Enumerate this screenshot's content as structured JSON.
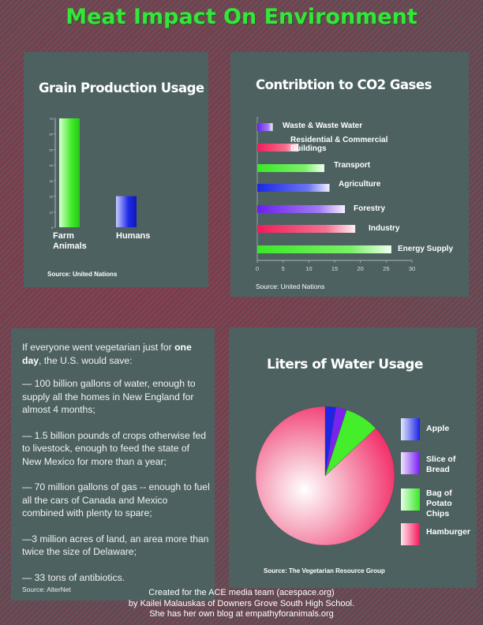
{
  "title": "Meat Impact On Environment",
  "grain": {
    "title": "Grain Production Usage",
    "source": "Source: United Nations",
    "labels": [
      [
        "Farm",
        "Animals"
      ],
      [
        "Humans"
      ]
    ]
  },
  "co2": {
    "title": "Contribtion to CO2 Gases",
    "source": "Source: United Nations",
    "labels": [
      [
        "Waste & Waste Water"
      ],
      [
        "Residential & Commercial",
        "Buildings"
      ],
      [
        "Transport"
      ],
      [
        "Agriculture"
      ],
      [
        "Forestry"
      ],
      [
        "Industry"
      ],
      [
        "Energy Supply"
      ]
    ]
  },
  "water": {
    "title": "Liters of Water Usage",
    "source": "Source: The Vegetarian Resource Group",
    "legend": [
      {
        "lines": [
          "Apple"
        ],
        "color": "#2020e8"
      },
      {
        "lines": [
          "Slice of",
          "Bread"
        ],
        "color": "#7a22f0"
      },
      {
        "lines": [
          "Bag of",
          "Potato",
          "Chips"
        ],
        "color": "#44ee2a"
      },
      {
        "lines": [
          "Hamburger"
        ],
        "color": "#f2195a"
      }
    ]
  },
  "vegetarian": {
    "intro_before": "If everyone went vegetarian just for ",
    "intro_bold": "one day",
    "intro_after": ", the U.S. would save:",
    "points": [
      "— 100 billion gallons of water, enough to supply all the homes in New England for almost 4 months;",
      "— 1.5 billion pounds of crops otherwise fed to livestock, enough to feed the state of New Mexico for more than a year;",
      "— 70 million gallons of gas -- enough to fuel all the cars of Canada and Mexico combined with plenty to spare;",
      "—3 million acres of land, an area more than twice the size of Delaware;",
      "— 33 tons of antibiotics."
    ],
    "source": "Source: AlterNet"
  },
  "footer": {
    "line1": "Created for the ACE media team (acespace.org)",
    "line2": "by Kailei Malauskas of Downers Grove South High School.",
    "line3": "She has her own blog at empathyforanimals.org"
  },
  "chart_data": [
    {
      "type": "bar",
      "title": "Grain Production Usage",
      "categories": [
        "Farm Animals",
        "Humans"
      ],
      "values": [
        70,
        20
      ],
      "colors": [
        "#3ee828",
        "#1a28e0"
      ],
      "ylim": [
        0,
        70
      ],
      "yticks": [
        0,
        10,
        20,
        30,
        40,
        50,
        60,
        70
      ]
    },
    {
      "type": "bar",
      "orientation": "horizontal",
      "title": "Contribtion to CO2 Gases",
      "categories": [
        "Waste & Waste Water",
        "Residential & Commercial Buildings",
        "Transport",
        "Agriculture",
        "Forestry",
        "Industry",
        "Energy Supply"
      ],
      "values": [
        3,
        8,
        13,
        14,
        17,
        19,
        26
      ],
      "colors": [
        "#6a24f0",
        "#f2205e",
        "#44ee2a",
        "#1f2ee8",
        "#7a22f0",
        "#f2205e",
        "#44ee2a"
      ],
      "xlim": [
        0,
        30
      ],
      "xticks": [
        0,
        5,
        10,
        15,
        20,
        25,
        30
      ]
    },
    {
      "type": "pie",
      "title": "Liters of Water Usage",
      "categories": [
        "Apple",
        "Slice of Bread",
        "Bag of Potato Chips",
        "Hamburger"
      ],
      "values": [
        2.5,
        2.5,
        8,
        87
      ],
      "colors": [
        "#2020e8",
        "#7a22f0",
        "#44ee2a",
        "#f2195a"
      ]
    }
  ]
}
